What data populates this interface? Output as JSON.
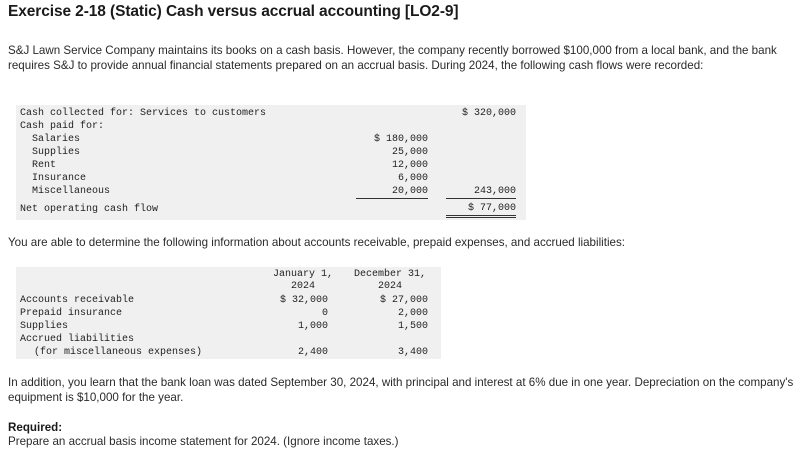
{
  "title": "Exercise 2-18 (Static) Cash versus accrual accounting [LO2-9]",
  "intro": "S&J Lawn Service Company maintains its books on a cash basis. However, the company recently borrowed $100,000 from a local bank, and the bank requires S&J to provide annual financial statements prepared on an accrual basis. During 2024, the following cash flows were recorded:",
  "cash_table": {
    "collected_label": "Cash collected for: Services to customers",
    "collected_total": "$ 320,000",
    "paid_label": "Cash paid for:",
    "items": [
      {
        "label": "Salaries",
        "value": "$ 180,000"
      },
      {
        "label": "Supplies",
        "value": "25,000"
      },
      {
        "label": "Rent",
        "value": "12,000"
      },
      {
        "label": "Insurance",
        "value": "6,000"
      },
      {
        "label": "Miscellaneous",
        "value": "20,000"
      }
    ],
    "paid_total": "243,000",
    "net_label": "Net operating cash flow",
    "net_value": "$ 77,000"
  },
  "accrual_intro": "You are able to determine the following information about accounts receivable, prepaid expenses, and accrued liabilities:",
  "balance_table": {
    "col1_line1": "January 1,",
    "col1_line2": "2024",
    "col2_line1": "December 31,",
    "col2_line2": "2024",
    "rows": [
      {
        "label": "Accounts receivable",
        "jan": "$ 32,000",
        "dec": "$ 27,000"
      },
      {
        "label": "Prepaid insurance",
        "jan": "0",
        "dec": "2,000"
      },
      {
        "label": "Supplies",
        "jan": "1,000",
        "dec": "1,500"
      }
    ],
    "accrued_label": "Accrued liabilities",
    "accrued_sublabel": "(for miscellaneous expenses)",
    "accrued_jan": "2,400",
    "accrued_dec": "3,400"
  },
  "additional_info": "In addition, you learn that the bank loan was dated September 30, 2024, with principal and interest at 6% due in one year. Depreciation on the company's equipment is $10,000 for the year.",
  "required_heading": "Required:",
  "required_text": "Prepare an accrual basis income statement for 2024. (Ignore income taxes.)"
}
